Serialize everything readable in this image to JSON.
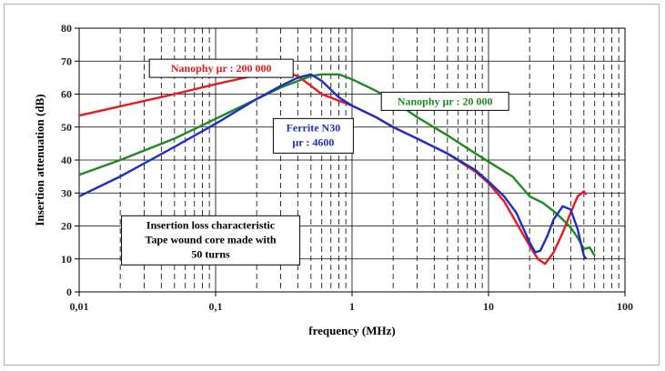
{
  "chart_data": {
    "type": "line",
    "xscale": "log",
    "xlabel": "frequency (MHz)",
    "ylabel": "Insertion attenuation (dB)",
    "xlim": [
      0.01,
      100
    ],
    "ylim": [
      0,
      80
    ],
    "x_ticks": [
      "0,01",
      "0,1",
      "1",
      "10",
      "100"
    ],
    "y_ticks": [
      "0",
      "10",
      "20",
      "30",
      "40",
      "50",
      "60",
      "70",
      "80"
    ],
    "grid": true,
    "series": [
      {
        "name": "Nanophy µr : 200 000",
        "color": "#e8191f",
        "points": [
          [
            0.01,
            53.5
          ],
          [
            0.02,
            56.3
          ],
          [
            0.05,
            60
          ],
          [
            0.1,
            63
          ],
          [
            0.2,
            65.8
          ],
          [
            0.3,
            66.8
          ],
          [
            0.4,
            65.5
          ],
          [
            0.5,
            62.5
          ],
          [
            0.6,
            60
          ],
          [
            0.8,
            58
          ],
          [
            1,
            56.5
          ],
          [
            1.5,
            53
          ],
          [
            2,
            50
          ],
          [
            3,
            46.5
          ],
          [
            5,
            42
          ],
          [
            8,
            36.5
          ],
          [
            10,
            33
          ],
          [
            13,
            27.5
          ],
          [
            16,
            21
          ],
          [
            20,
            14
          ],
          [
            23,
            10
          ],
          [
            26,
            8.5
          ],
          [
            30,
            12
          ],
          [
            35,
            18
          ],
          [
            40,
            24
          ],
          [
            45,
            29
          ],
          [
            50,
            30.5
          ],
          [
            52,
            29.5
          ]
        ]
      },
      {
        "name": "Nanophy µr : 20 000",
        "color": "#1e8a1e",
        "points": [
          [
            0.01,
            35.5
          ],
          [
            0.02,
            40
          ],
          [
            0.05,
            46.5
          ],
          [
            0.1,
            52.5
          ],
          [
            0.2,
            58.5
          ],
          [
            0.3,
            62
          ],
          [
            0.5,
            65.5
          ],
          [
            0.6,
            66
          ],
          [
            0.8,
            66
          ],
          [
            1,
            64.5
          ],
          [
            1.5,
            61
          ],
          [
            2,
            58
          ],
          [
            3,
            53
          ],
          [
            5,
            47.5
          ],
          [
            8,
            42
          ],
          [
            10,
            39.5
          ],
          [
            15,
            35
          ],
          [
            20,
            29
          ],
          [
            25,
            27
          ],
          [
            30,
            24.5
          ],
          [
            35,
            22
          ],
          [
            40,
            19.5
          ],
          [
            45,
            16.5
          ],
          [
            50,
            13
          ],
          [
            55,
            13.5
          ],
          [
            60,
            11
          ]
        ]
      },
      {
        "name": "Ferrite N30 µr : 4600",
        "color": "#1c2ec8",
        "points": [
          [
            0.01,
            29
          ],
          [
            0.02,
            35
          ],
          [
            0.05,
            44
          ],
          [
            0.1,
            51
          ],
          [
            0.2,
            58.5
          ],
          [
            0.3,
            62.5
          ],
          [
            0.4,
            65
          ],
          [
            0.5,
            66
          ],
          [
            0.6,
            64
          ],
          [
            0.8,
            59
          ],
          [
            1,
            56.5
          ],
          [
            1.5,
            53
          ],
          [
            2,
            50
          ],
          [
            3,
            46.5
          ],
          [
            5,
            42
          ],
          [
            8,
            37
          ],
          [
            10,
            33.5
          ],
          [
            13,
            29
          ],
          [
            16,
            24
          ],
          [
            20,
            15
          ],
          [
            22,
            12
          ],
          [
            24,
            12.5
          ],
          [
            27,
            17
          ],
          [
            30,
            22
          ],
          [
            35,
            26
          ],
          [
            40,
            25
          ],
          [
            45,
            19
          ],
          [
            50,
            11
          ],
          [
            52,
            10
          ]
        ]
      }
    ],
    "annotations": [
      {
        "text": "Nanophy µr : 200 000",
        "color": "#e8191f",
        "anchor_x": 0.11,
        "anchor_y": 67
      },
      {
        "text": "Nanophy µr : 20 000",
        "color": "#1e8a1e",
        "anchor_x": 4.8,
        "anchor_y": 57
      },
      {
        "text": "Ferrite N30",
        "color": "#1c2ec8",
        "anchor_x": 0.52,
        "anchor_y": 49
      },
      {
        "text": "µr : 4600",
        "color": "#1c2ec8",
        "anchor_x": 0.52,
        "anchor_y": 43.5
      },
      {
        "text": "Insertion loss characteristic",
        "color": "#000000",
        "anchor_x": 0.092,
        "anchor_y": 19.5
      },
      {
        "text": "Tape wound core made with",
        "color": "#000000",
        "anchor_x": 0.092,
        "anchor_y": 14
      },
      {
        "text": "50 turns",
        "color": "#000000",
        "anchor_x": 0.092,
        "anchor_y": 9
      }
    ],
    "legend": "inline annotations"
  }
}
